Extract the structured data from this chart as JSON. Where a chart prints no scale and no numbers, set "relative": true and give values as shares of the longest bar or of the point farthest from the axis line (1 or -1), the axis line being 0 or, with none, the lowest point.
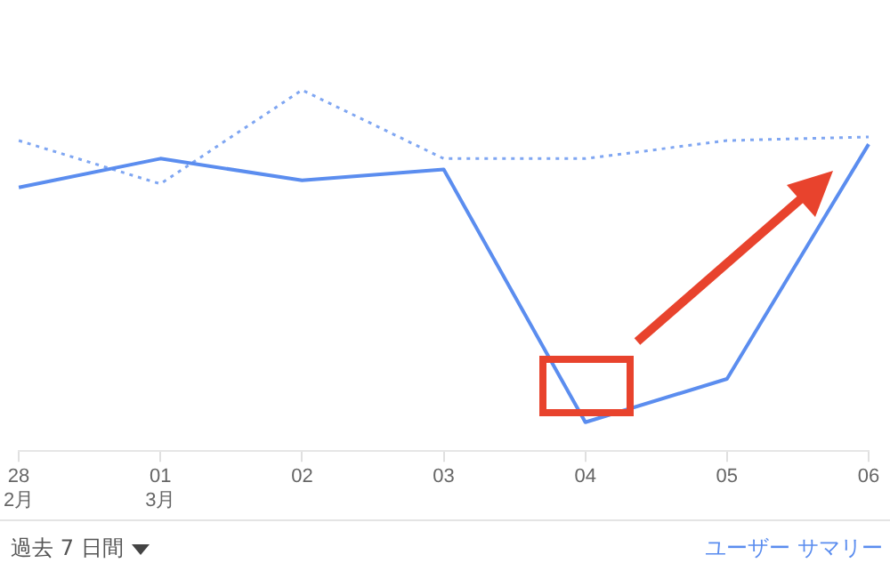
{
  "chart_data": {
    "type": "line",
    "relative": true,
    "categories": [
      "28\n2月",
      "01\n3月",
      "02",
      "03",
      "04",
      "05",
      "06"
    ],
    "series": [
      {
        "color": "#5b8def",
        "line_style": "solid",
        "values": [
          0.73,
          0.81,
          0.75,
          0.78,
          0.08,
          0.2,
          0.85
        ]
      },
      {
        "color": "#7fa6f2",
        "line_style": "dotted",
        "values": [
          0.86,
          0.74,
          1,
          0.81,
          0.81,
          0.86,
          0.87
        ]
      }
    ],
    "marker": "none",
    "legend": false,
    "grid": false,
    "annotations": [
      "過去 7 日間",
      "ユーザー サマリー"
    ]
  }
}
